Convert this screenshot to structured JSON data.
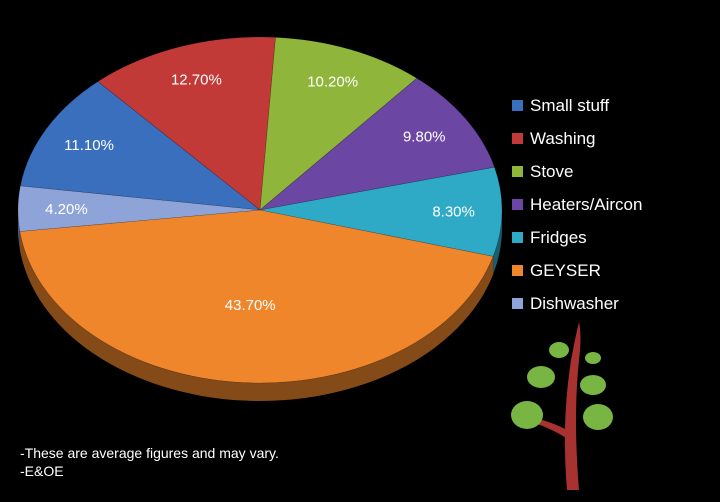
{
  "chart_data": {
    "type": "pie",
    "title": "",
    "categories": [
      "Small stuff",
      "Washing",
      "Stove",
      "Heaters/Aircon",
      "Fridges",
      "GEYSER",
      "Dishwasher"
    ],
    "values": [
      11.1,
      12.7,
      10.2,
      9.8,
      8.3,
      43.7,
      4.2
    ],
    "data_labels": [
      "11.10%",
      "12.70%",
      "10.20%",
      "9.80%",
      "8.30%",
      "43.70%",
      "4.20%"
    ],
    "colors": [
      "#3a6fbd",
      "#c23a38",
      "#8fb63a",
      "#6b46a3",
      "#2eaac7",
      "#f0862b",
      "#8ea4d8"
    ],
    "legend_position": "right",
    "style": "3d"
  },
  "notes": [
    "-These are average figures and may vary.",
    "-E&OE"
  ],
  "logo": {
    "icon": "tree-logo-icon"
  }
}
